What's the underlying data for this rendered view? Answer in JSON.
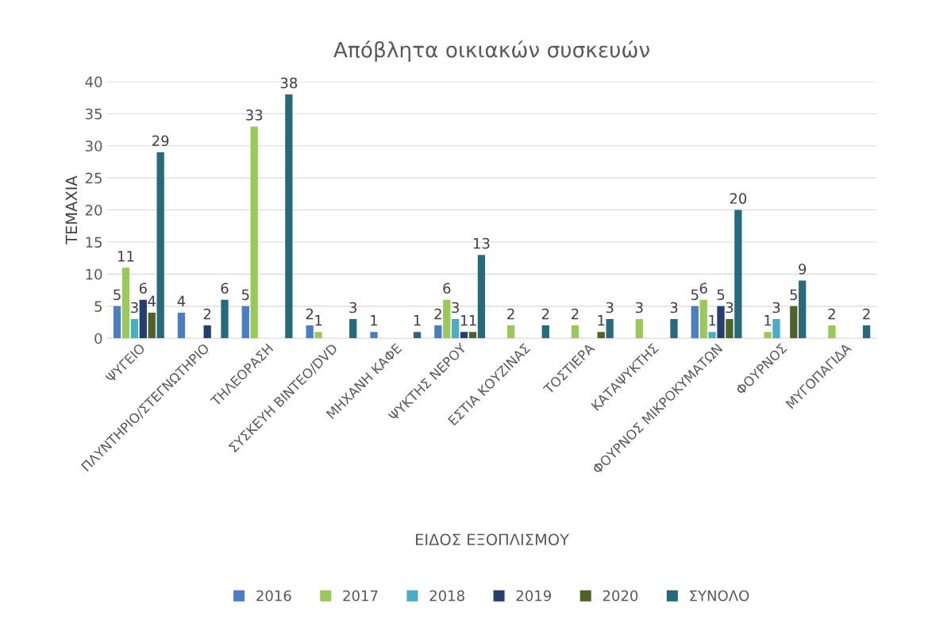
{
  "chart_data": {
    "type": "bar",
    "title": "Απόβλητα οικιακών συσκευών",
    "xlabel": "ΕΙΔΟΣ ΕΞΟΠΛΙΣΜΟΥ",
    "ylabel": "ΤΕΜΑΧΙΑ",
    "categories": [
      "ΨΥΓΕΙΟ",
      "ΠΛΥΝΤΗΡΙΟ/ΣΤΕΓΝΩΤΗΡΙΟ",
      "ΤΗΛΕΟΡΑΣΗ",
      "ΣΥΣΚΕΥΗ ΒΙΝΤΕΟ/DVD",
      "ΜΗΧΑΝΗ ΚΑΦΕ",
      "ΨΥΚΤΗΣ ΝΕΡΟΥ",
      "ΕΣΤΙΑ ΚΟΥΖΙΝΑΣ",
      "ΤΟΣΤΙΕΡΑ",
      "ΚΑΤΑΨΥΚΤΗΣ",
      "ΦΟΥΡΝΟΣ ΜΙΚΡΟΚΥΜΑΤΩΝ",
      "ΦΟΥΡΝΟΣ",
      "ΜΥΓΟΠΑΓΙΔΑ"
    ],
    "series": [
      {
        "name": "2016",
        "color": "#4a7ebf",
        "values": [
          5,
          4,
          5,
          2,
          1,
          2,
          null,
          null,
          null,
          5,
          null,
          null
        ]
      },
      {
        "name": "2017",
        "color": "#9bc85a",
        "values": [
          11,
          null,
          33,
          1,
          null,
          6,
          2,
          2,
          3,
          6,
          1,
          2
        ]
      },
      {
        "name": "2018",
        "color": "#4bacc6",
        "values": [
          3,
          null,
          null,
          null,
          null,
          3,
          null,
          null,
          null,
          1,
          3,
          null
        ]
      },
      {
        "name": "2019",
        "color": "#243f6e",
        "values": [
          6,
          2,
          null,
          null,
          null,
          1,
          null,
          null,
          null,
          5,
          null,
          null
        ]
      },
      {
        "name": "2020",
        "color": "#4f6228",
        "values": [
          4,
          null,
          null,
          null,
          null,
          1,
          null,
          1,
          null,
          3,
          5,
          null
        ]
      },
      {
        "name": "ΣΥΝΟΛΟ",
        "color": "#276a7c",
        "values": [
          29,
          6,
          38,
          3,
          1,
          13,
          2,
          3,
          3,
          20,
          9,
          2
        ]
      }
    ],
    "ylim": [
      0,
      40
    ],
    "yticks": [
      0,
      5,
      10,
      15,
      20,
      25,
      30,
      35,
      40
    ],
    "grid": "y",
    "legend": "bottom",
    "data_labels": true
  }
}
